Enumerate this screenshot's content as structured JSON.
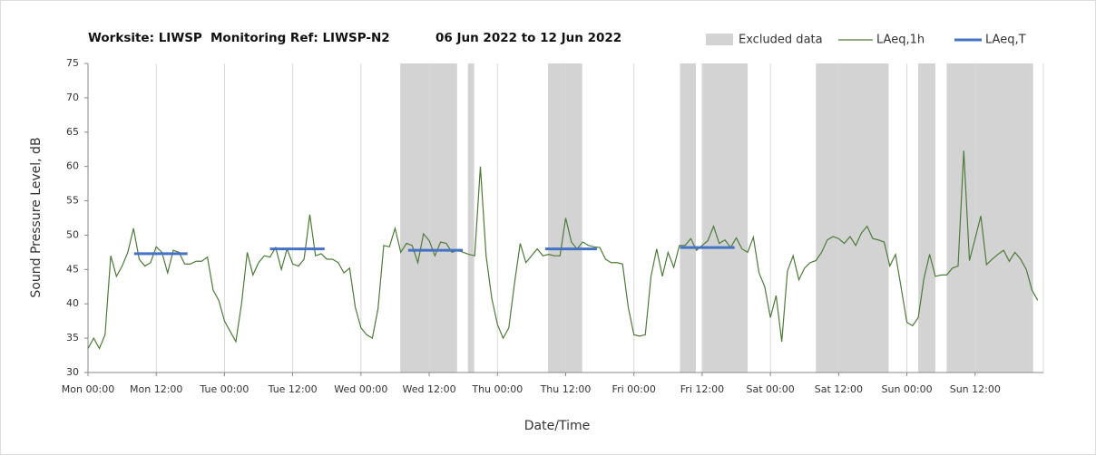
{
  "chart_data": {
    "type": "line",
    "title_parts": [
      "Worksite: LIWSP",
      "Monitoring Ref: LIWSP-N2",
      "06 Jun 2022 to 12 Jun 2022"
    ],
    "ylabel": "Sound Pressure Level, dB",
    "xlabel": "Date/Time",
    "xlim": [
      0,
      168
    ],
    "xticks": [
      {
        "value": 0,
        "label": "Mon 00:00"
      },
      {
        "value": 12,
        "label": "Mon 12:00"
      },
      {
        "value": 24,
        "label": "Tue 00:00"
      },
      {
        "value": 36,
        "label": "Tue 12:00"
      },
      {
        "value": 48,
        "label": "Wed 00:00"
      },
      {
        "value": 60,
        "label": "Wed 12:00"
      },
      {
        "value": 72,
        "label": "Thu 00:00"
      },
      {
        "value": 84,
        "label": "Thu 12:00"
      },
      {
        "value": 96,
        "label": "Fri 00:00"
      },
      {
        "value": 108,
        "label": "Fri 12:00"
      },
      {
        "value": 120,
        "label": "Sat 00:00"
      },
      {
        "value": 132,
        "label": "Sat 12:00"
      },
      {
        "value": 144,
        "label": "Sun 00:00"
      },
      {
        "value": 156,
        "label": "Sun 12:00"
      }
    ],
    "ylim": [
      30,
      75
    ],
    "yticks": [
      30,
      35,
      40,
      45,
      50,
      55,
      60,
      65,
      70,
      75
    ],
    "grid": true,
    "excluded": {
      "name": "Excluded data",
      "color": "#d3d3d3",
      "ranges": [
        [
          54.9,
          64.9
        ],
        [
          66.8,
          67.9
        ],
        [
          80.9,
          86.9
        ],
        [
          104.1,
          106.9
        ],
        [
          108,
          116
        ],
        [
          128,
          140.8
        ],
        [
          146,
          149
        ],
        [
          151,
          166.2
        ]
      ]
    },
    "series": [
      {
        "name": "LAeq,1h",
        "color": "#4e7a3a",
        "x": [
          0,
          1,
          2,
          3,
          4,
          5,
          6,
          7,
          8,
          9,
          10,
          11,
          12,
          13,
          14,
          15,
          16,
          17,
          18,
          19,
          20,
          21,
          22,
          23,
          24,
          25,
          26,
          27,
          28,
          29,
          30,
          31,
          32,
          33,
          34,
          35,
          36,
          37,
          38,
          39,
          40,
          41,
          42,
          43,
          44,
          45,
          46,
          47,
          48,
          49,
          50,
          51,
          52,
          53,
          54,
          55,
          56,
          57,
          58,
          59,
          60,
          61,
          62,
          63,
          64,
          65,
          66,
          67,
          68,
          69,
          70,
          71,
          72,
          73,
          74,
          75,
          76,
          77,
          78,
          79,
          80,
          81,
          82,
          83,
          84,
          85,
          86,
          87,
          88,
          89,
          90,
          91,
          92,
          93,
          94,
          95,
          96,
          97,
          98,
          99,
          100,
          101,
          102,
          103,
          104,
          105,
          106,
          107,
          108,
          109,
          110,
          111,
          112,
          113,
          114,
          115,
          116,
          117,
          118,
          119,
          120,
          121,
          122,
          123,
          124,
          125,
          126,
          127,
          128,
          129,
          130,
          131,
          132,
          133,
          134,
          135,
          136,
          137,
          138,
          139,
          140,
          141,
          142,
          143,
          144,
          145,
          146,
          147,
          148,
          149,
          150,
          151,
          152,
          153,
          154,
          155,
          156,
          157,
          158,
          159,
          160,
          161,
          162,
          163,
          164,
          165,
          166,
          167
        ],
        "values": [
          33.5,
          35,
          33.5,
          35.5,
          47,
          44,
          45.5,
          47.5,
          51,
          46.5,
          45.5,
          46,
          48.3,
          47.5,
          44.5,
          47.8,
          47.5,
          45.8,
          45.8,
          46.2,
          46.2,
          46.8,
          42,
          40.5,
          37.5,
          36,
          34.5,
          40,
          47.5,
          44.2,
          46,
          47,
          46.8,
          48.2,
          45,
          48,
          45.8,
          45.5,
          46.5,
          53,
          47,
          47.3,
          46.5,
          46.5,
          46,
          44.5,
          45.2,
          39.5,
          36.5,
          35.5,
          35,
          39.3,
          48.5,
          48.3,
          51,
          47.5,
          48.8,
          48.5,
          46,
          50.2,
          49.2,
          47,
          49,
          48.8,
          47.5,
          47.8,
          47.5,
          47.2,
          47,
          60,
          47,
          40.8,
          37,
          35,
          36.5,
          43,
          48.8,
          46,
          47,
          48,
          47,
          47.2,
          47,
          47,
          52.5,
          49,
          48,
          49,
          48.5,
          48.3,
          48.2,
          46.5,
          46,
          46,
          45.8,
          39.5,
          35.5,
          35.3,
          35.5,
          44,
          48,
          44,
          47.5,
          45.3,
          48.5,
          48.5,
          49.5,
          47.8,
          48.5,
          49.2,
          51.3,
          48.8,
          49.3,
          48.2,
          49.6,
          48,
          47.5,
          49.7,
          44.5,
          42.5,
          38,
          41.2,
          34.5,
          44.8,
          47,
          43.5,
          45.2,
          46,
          46.3,
          47.5,
          49.3,
          49.8,
          49.5,
          48.8,
          49.8,
          48.5,
          50.3,
          51.3,
          49.5,
          49.3,
          49,
          45.5,
          47.2,
          42.3,
          37.3,
          36.8,
          38,
          43.7,
          47.2,
          44,
          44.2,
          44.2,
          45.2,
          45.5,
          62.3,
          46.3,
          49.5,
          52.8,
          45.7,
          46.5,
          47.2,
          47.8,
          46.2,
          47.5,
          46.5,
          45,
          42,
          40.5
        ]
      },
      {
        "name": "LAeq,T",
        "color": "#4472c4",
        "segments": [
          {
            "start": 8.1,
            "end": 17.5,
            "value": 47.3
          },
          {
            "start": 32,
            "end": 41.6,
            "value": 48
          },
          {
            "start": 56.3,
            "end": 65.9,
            "value": 47.8
          },
          {
            "start": 80.4,
            "end": 89.5,
            "value": 48
          },
          {
            "start": 104.1,
            "end": 113.7,
            "value": 48.2
          }
        ]
      }
    ]
  }
}
